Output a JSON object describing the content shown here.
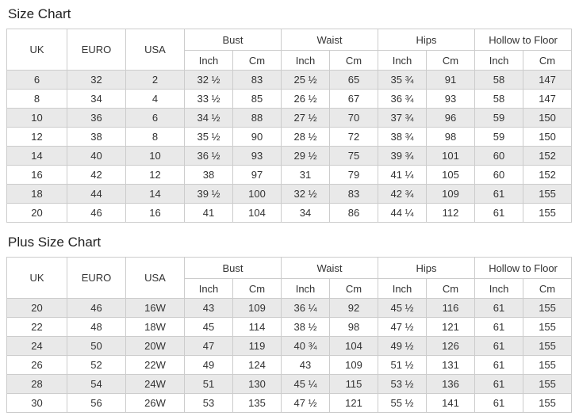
{
  "tables": [
    {
      "title": "Size Chart",
      "headers": {
        "uk": "UK",
        "euro": "EURO",
        "usa": "USA",
        "groups": [
          "Bust",
          "Waist",
          "Hips",
          "Hollow to Floor"
        ],
        "inch": "Inch",
        "cm": "Cm"
      },
      "rows": [
        [
          "6",
          "32",
          "2",
          "32 ½",
          "83",
          "25 ½",
          "65",
          "35 ¾",
          "91",
          "58",
          "147"
        ],
        [
          "8",
          "34",
          "4",
          "33 ½",
          "85",
          "26 ½",
          "67",
          "36 ¾",
          "93",
          "58",
          "147"
        ],
        [
          "10",
          "36",
          "6",
          "34 ½",
          "88",
          "27 ½",
          "70",
          "37 ¾",
          "96",
          "59",
          "150"
        ],
        [
          "12",
          "38",
          "8",
          "35 ½",
          "90",
          "28 ½",
          "72",
          "38 ¾",
          "98",
          "59",
          "150"
        ],
        [
          "14",
          "40",
          "10",
          "36 ½",
          "93",
          "29 ½",
          "75",
          "39 ¾",
          "101",
          "60",
          "152"
        ],
        [
          "16",
          "42",
          "12",
          "38",
          "97",
          "31",
          "79",
          "41 ¼",
          "105",
          "60",
          "152"
        ],
        [
          "18",
          "44",
          "14",
          "39 ½",
          "100",
          "32 ½",
          "83",
          "42 ¾",
          "109",
          "61",
          "155"
        ],
        [
          "20",
          "46",
          "16",
          "41",
          "104",
          "34",
          "86",
          "44 ¼",
          "112",
          "61",
          "155"
        ]
      ]
    },
    {
      "title": "Plus Size Chart",
      "headers": {
        "uk": "UK",
        "euro": "EURO",
        "usa": "USA",
        "groups": [
          "Bust",
          "Waist",
          "Hips",
          "Hollow to Floor"
        ],
        "inch": "Inch",
        "cm": "Cm"
      },
      "rows": [
        [
          "20",
          "46",
          "16W",
          "43",
          "109",
          "36 ¼",
          "92",
          "45 ½",
          "116",
          "61",
          "155"
        ],
        [
          "22",
          "48",
          "18W",
          "45",
          "114",
          "38 ½",
          "98",
          "47 ½",
          "121",
          "61",
          "155"
        ],
        [
          "24",
          "50",
          "20W",
          "47",
          "119",
          "40 ¾",
          "104",
          "49 ½",
          "126",
          "61",
          "155"
        ],
        [
          "26",
          "52",
          "22W",
          "49",
          "124",
          "43",
          "109",
          "51 ½",
          "131",
          "61",
          "155"
        ],
        [
          "28",
          "54",
          "24W",
          "51",
          "130",
          "45 ¼",
          "115",
          "53 ½",
          "136",
          "61",
          "155"
        ],
        [
          "30",
          "56",
          "26W",
          "53",
          "135",
          "47 ½",
          "121",
          "55 ½",
          "141",
          "61",
          "155"
        ]
      ]
    }
  ]
}
